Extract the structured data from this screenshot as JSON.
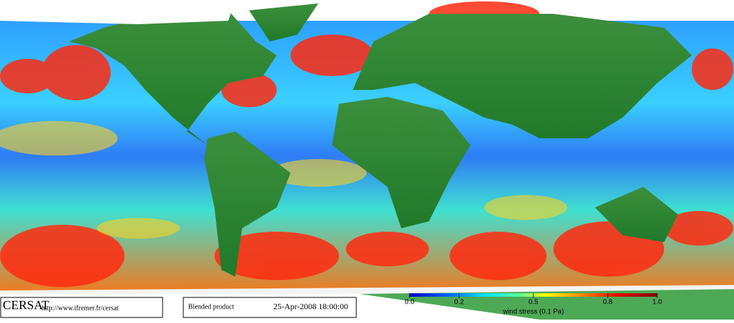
{
  "footer": {
    "logo": "CERSAT",
    "url": "http://www.ifremer.fr/cersat",
    "product": "Blended product",
    "date": "25-Apr-2008 18:00:00"
  },
  "colorbar": {
    "title": "wind stress (0.1 Pa)",
    "lim": [
      0,
      1
    ],
    "ticks": [
      {
        "value": 0,
        "label": "0.0"
      },
      0.2,
      0.5,
      0.8,
      {
        "value": 1,
        "label": "1.0"
      }
    ]
  }
}
